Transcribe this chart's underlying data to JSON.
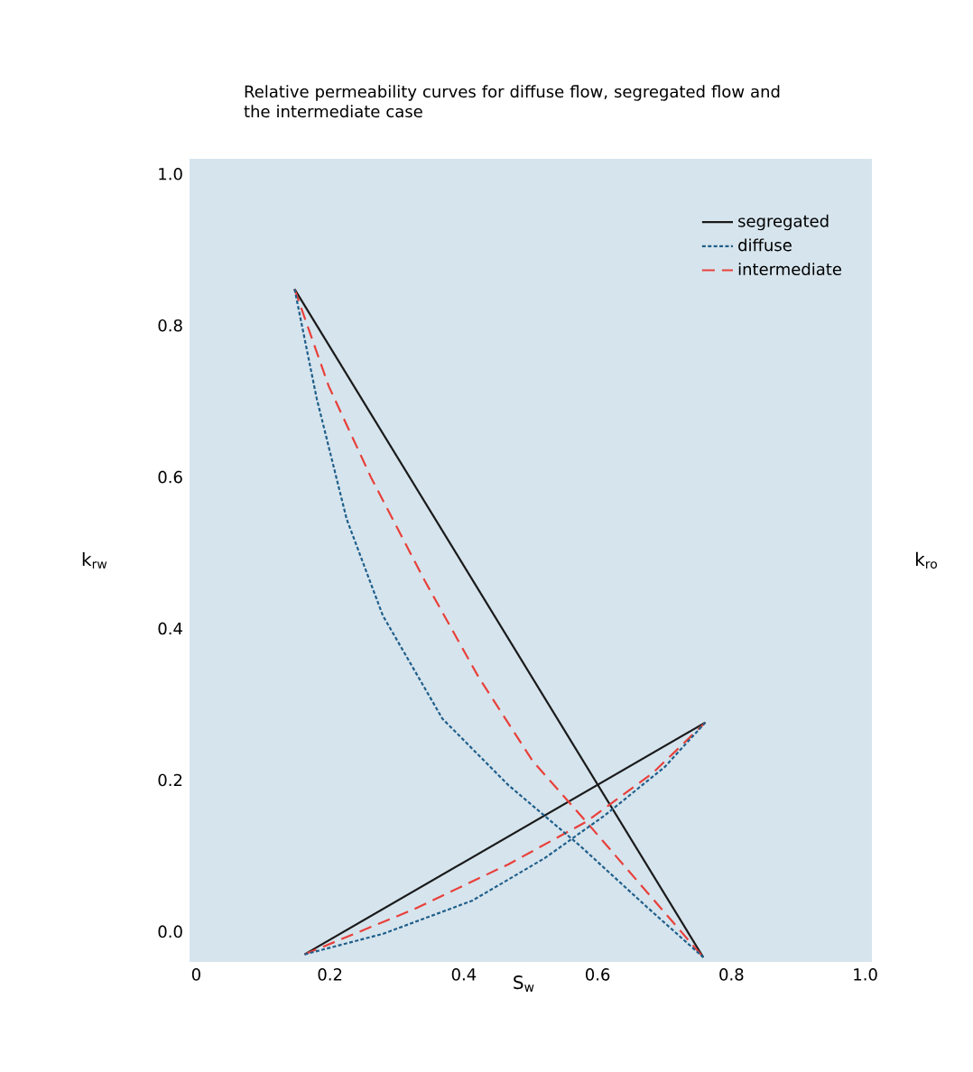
{
  "chart_data": {
    "type": "line",
    "title": "Relative permeability curves for diffuse flow, segregated flow and the intermediate case",
    "xlabel": "S$_{w}$",
    "ylabel": "k$_{rw}$",
    "y2label": "k$_{ro}$",
    "xlim": [
      -0.01,
      1.01
    ],
    "ylim": [
      -0.04,
      1.02
    ],
    "xticks": [
      0,
      0.2,
      0.4,
      0.6,
      0.8,
      {
        "value": 1,
        "label": "1.0"
      }
    ],
    "yticks": [
      {
        "value": 0,
        "label": "0.0"
      },
      0.2,
      0.4,
      0.6,
      0.8,
      {
        "value": 1,
        "label": "1.0"
      }
    ],
    "legend": "top right",
    "grid": false,
    "series": [
      {
        "name": "segregated",
        "color": "#1a1a1a",
        "line_style": "solid",
        "x": [
          0.147,
          0.758
        ],
        "values": [
          0.848,
          -0.034
        ]
      },
      {
        "color": "#1a1a1a",
        "line_style": "solid",
        "x": [
          0.162,
          0.761
        ],
        "values": [
          -0.03,
          0.276
        ]
      },
      {
        "name": "diffuse",
        "color": "#1f5f8b",
        "line_style": "dotted",
        "x": [
          0.147,
          0.18,
          0.225,
          0.279,
          0.368,
          0.467,
          0.574,
          0.673,
          0.758
        ],
        "values": [
          0.848,
          0.704,
          0.544,
          0.417,
          0.281,
          0.193,
          0.113,
          0.033,
          -0.034
        ]
      },
      {
        "color": "#1f5f8b",
        "line_style": "dotted",
        "x": [
          0.162,
          0.279,
          0.413,
          0.521,
          0.61,
          0.7,
          0.761
        ],
        "values": [
          -0.03,
          -0.003,
          0.041,
          0.097,
          0.153,
          0.217,
          0.276
        ]
      },
      {
        "name": "intermediate",
        "color": "#e8403a",
        "line_style": "dashed",
        "x": [
          0.147,
          0.198,
          0.261,
          0.341,
          0.422,
          0.503,
          0.583,
          0.758
        ],
        "values": [
          0.848,
          0.72,
          0.6,
          0.464,
          0.336,
          0.225,
          0.145,
          -0.034
        ]
      },
      {
        "color": "#e8403a",
        "line_style": "dashed",
        "x": [
          0.162,
          0.324,
          0.467,
          0.583,
          0.682,
          0.761
        ],
        "values": [
          -0.03,
          0.029,
          0.089,
          0.145,
          0.209,
          0.276
        ]
      }
    ]
  }
}
